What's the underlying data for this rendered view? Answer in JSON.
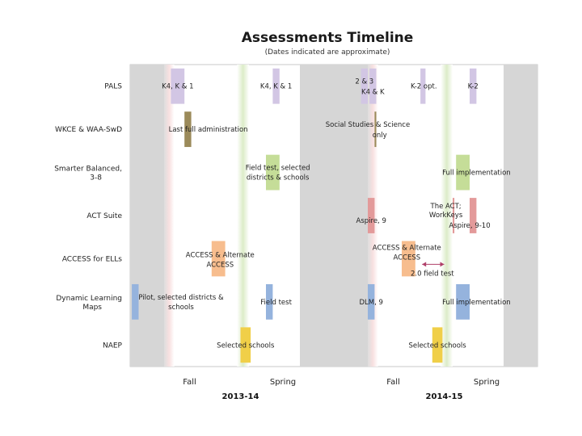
{
  "chart_data": {
    "type": "gantt-timeline",
    "title": "Assessments Timeline",
    "subtitle": "(Dates indicated are approximate)",
    "rows": [
      "PALS",
      "WKCE & WAA-SwD",
      "Smarter Balanced, 3-8",
      "ACT Suite",
      "ACCESS for ELLs",
      "Dynamic Learning Maps",
      "NAEP"
    ],
    "time_axis": {
      "unit": "month",
      "range": [
        0,
        24
      ],
      "start": "July 2013"
    },
    "periods": [
      {
        "season": "Fall",
        "year": "2013-14",
        "month_center": 3.5
      },
      {
        "season": "Spring",
        "year": "2013-14",
        "month_center": 9
      },
      {
        "season": "Fall",
        "year": "2014-15",
        "month_center": 15.5
      },
      {
        "season": "Spring",
        "year": "2014-15",
        "month_center": 21
      }
    ],
    "years": [
      {
        "label": "2013-14",
        "month_center": 6.5
      },
      {
        "label": "2014-15",
        "month_center": 18.5
      }
    ],
    "bars": [
      {
        "row": 0,
        "start": 2.4,
        "end": 3.2,
        "color": "#d2c6e4"
      },
      {
        "row": 0,
        "start": 8.4,
        "end": 8.8,
        "color": "#d2c6e4"
      },
      {
        "row": 0,
        "start": 13.6,
        "end": 14.0,
        "color": "#d2c6e4"
      },
      {
        "row": 0,
        "start": 14.1,
        "end": 14.5,
        "color": "#d2c6e4"
      },
      {
        "row": 0,
        "start": 17.1,
        "end": 17.4,
        "color": "#d2c6e4"
      },
      {
        "row": 0,
        "start": 20.0,
        "end": 20.4,
        "color": "#d2c6e4"
      },
      {
        "row": 1,
        "start": 3.2,
        "end": 3.6,
        "color": "#9b8a5a"
      },
      {
        "row": 1,
        "start": 14.4,
        "end": 14.5,
        "color": "#9b8a5a"
      },
      {
        "row": 2,
        "start": 8.0,
        "end": 8.8,
        "color": "#c5dd98"
      },
      {
        "row": 2,
        "start": 19.2,
        "end": 20.0,
        "color": "#c5dd98"
      },
      {
        "row": 3,
        "start": 14.0,
        "end": 14.4,
        "color": "#e39a9a"
      },
      {
        "row": 3,
        "start": 19.0,
        "end": 19.1,
        "color": "#e39a9a"
      },
      {
        "row": 3,
        "start": 20.0,
        "end": 20.4,
        "color": "#e39a9a"
      },
      {
        "row": 4,
        "start": 4.8,
        "end": 5.6,
        "color": "#f7bd8e"
      },
      {
        "row": 4,
        "start": 16.0,
        "end": 16.8,
        "color": "#f7bd8e"
      },
      {
        "row": 5,
        "start": 0.1,
        "end": 0.5,
        "color": "#95b3dd"
      },
      {
        "row": 5,
        "start": 8.0,
        "end": 8.4,
        "color": "#95b3dd"
      },
      {
        "row": 5,
        "start": 14.0,
        "end": 14.4,
        "color": "#95b3dd"
      },
      {
        "row": 5,
        "start": 19.2,
        "end": 20.0,
        "color": "#95b3dd"
      },
      {
        "row": 6,
        "start": 6.5,
        "end": 7.1,
        "color": "#f0cf48"
      },
      {
        "row": 6,
        "start": 17.8,
        "end": 18.4,
        "color": "#f0cf48"
      }
    ],
    "annotations": [
      {
        "row": 0,
        "month": 2.8,
        "dy": 0,
        "text": "K4, K & 1"
      },
      {
        "row": 0,
        "month": 8.6,
        "dy": 0,
        "text": "K4, K & 1"
      },
      {
        "row": 0,
        "month": 13.8,
        "dy": -6,
        "text": "2 & 3"
      },
      {
        "row": 0,
        "month": 14.3,
        "dy": 7,
        "text": "K4 & K"
      },
      {
        "row": 0,
        "month": 17.3,
        "dy": 0,
        "text": "K-2 opt."
      },
      {
        "row": 0,
        "month": 20.2,
        "dy": 0,
        "text": "K-2"
      },
      {
        "row": 1,
        "month": 4.6,
        "dy": 0,
        "text": "Last full administration"
      },
      {
        "row": 1,
        "month": 14.0,
        "dy": -6,
        "text": "Social Studies & Science"
      },
      {
        "row": 1,
        "month": 14.7,
        "dy": 7,
        "text": "only"
      },
      {
        "row": 2,
        "month": 8.7,
        "dy": -6,
        "text": "Field test, selected"
      },
      {
        "row": 2,
        "month": 8.7,
        "dy": 6,
        "text": "districts & schools"
      },
      {
        "row": 2,
        "month": 20.4,
        "dy": 0,
        "text": "Full implementation"
      },
      {
        "row": 3,
        "month": 14.2,
        "dy": 6,
        "text": "Aspire, 9"
      },
      {
        "row": 3,
        "month": 18.6,
        "dy": -12,
        "text": "The ACT;"
      },
      {
        "row": 3,
        "month": 18.6,
        "dy": -1,
        "text": "WorkKeys"
      },
      {
        "row": 3,
        "month": 20.0,
        "dy": 12,
        "text": "Aspire, 9-10"
      },
      {
        "row": 4,
        "month": 5.3,
        "dy": -5,
        "text": "ACCESS & Alternate"
      },
      {
        "row": 4,
        "month": 5.3,
        "dy": 7,
        "text": "ACCESS"
      },
      {
        "row": 4,
        "month": 16.3,
        "dy": -14,
        "text": "ACCESS & Alternate"
      },
      {
        "row": 4,
        "month": 16.3,
        "dy": -2,
        "text": "ACCESS"
      },
      {
        "row": 4,
        "month": 17.8,
        "dy": 18,
        "text": "2.0 field test"
      },
      {
        "row": 5,
        "month": 3.0,
        "dy": -6,
        "text": "Pilot, selected districts &"
      },
      {
        "row": 5,
        "month": 3.0,
        "dy": 6,
        "text": "schools"
      },
      {
        "row": 5,
        "month": 8.6,
        "dy": 0,
        "text": "Field test"
      },
      {
        "row": 5,
        "month": 14.2,
        "dy": 0,
        "text": "DLM, 9"
      },
      {
        "row": 5,
        "month": 20.4,
        "dy": 0,
        "text": "Full implementation"
      },
      {
        "row": 6,
        "month": 6.8,
        "dy": 0,
        "text": "Selected schools"
      },
      {
        "row": 6,
        "month": 18.1,
        "dy": 0,
        "text": "Selected schools"
      }
    ],
    "arrows": [
      {
        "row": 4,
        "from": 17.2,
        "to": 18.5,
        "dy": 7,
        "color": "#b0406a"
      }
    ]
  }
}
